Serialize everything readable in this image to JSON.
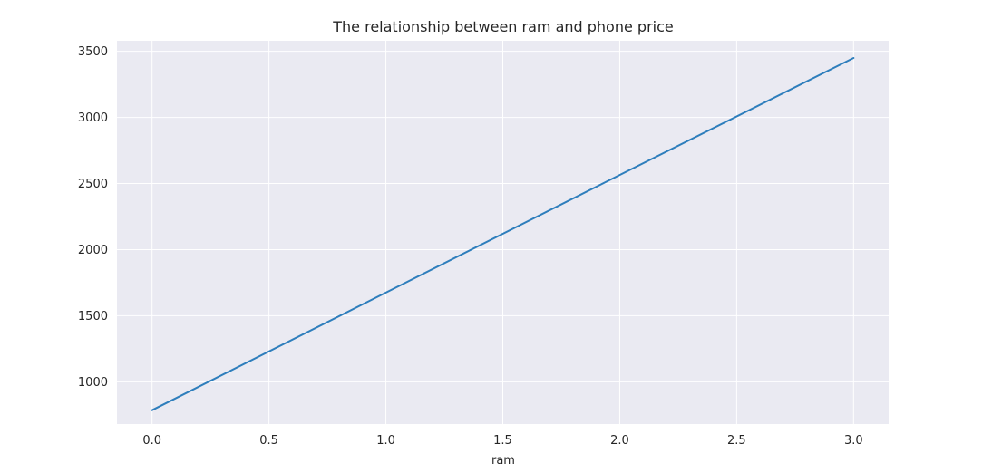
{
  "chart_data": {
    "type": "line",
    "title": "The relationship between ram and phone price",
    "xlabel": "ram",
    "ylabel": "",
    "x_ticks": [
      "0.0",
      "0.5",
      "1.0",
      "1.5",
      "2.0",
      "2.5",
      "3.0"
    ],
    "y_ticks": [
      "1000",
      "1500",
      "2000",
      "2500",
      "3000",
      "3500"
    ],
    "xlim": [
      -0.15,
      3.15
    ],
    "ylim": [
      680,
      3580
    ],
    "series": [
      {
        "x": [
          0,
          1,
          2,
          3
        ],
        "y": [
          785,
          1675,
          2565,
          3450
        ]
      }
    ],
    "grid": true,
    "colors": {
      "plot_background": "#eaeaf2",
      "grid": "#ffffff",
      "line": "#2e7ebc",
      "text": "#262626"
    }
  }
}
